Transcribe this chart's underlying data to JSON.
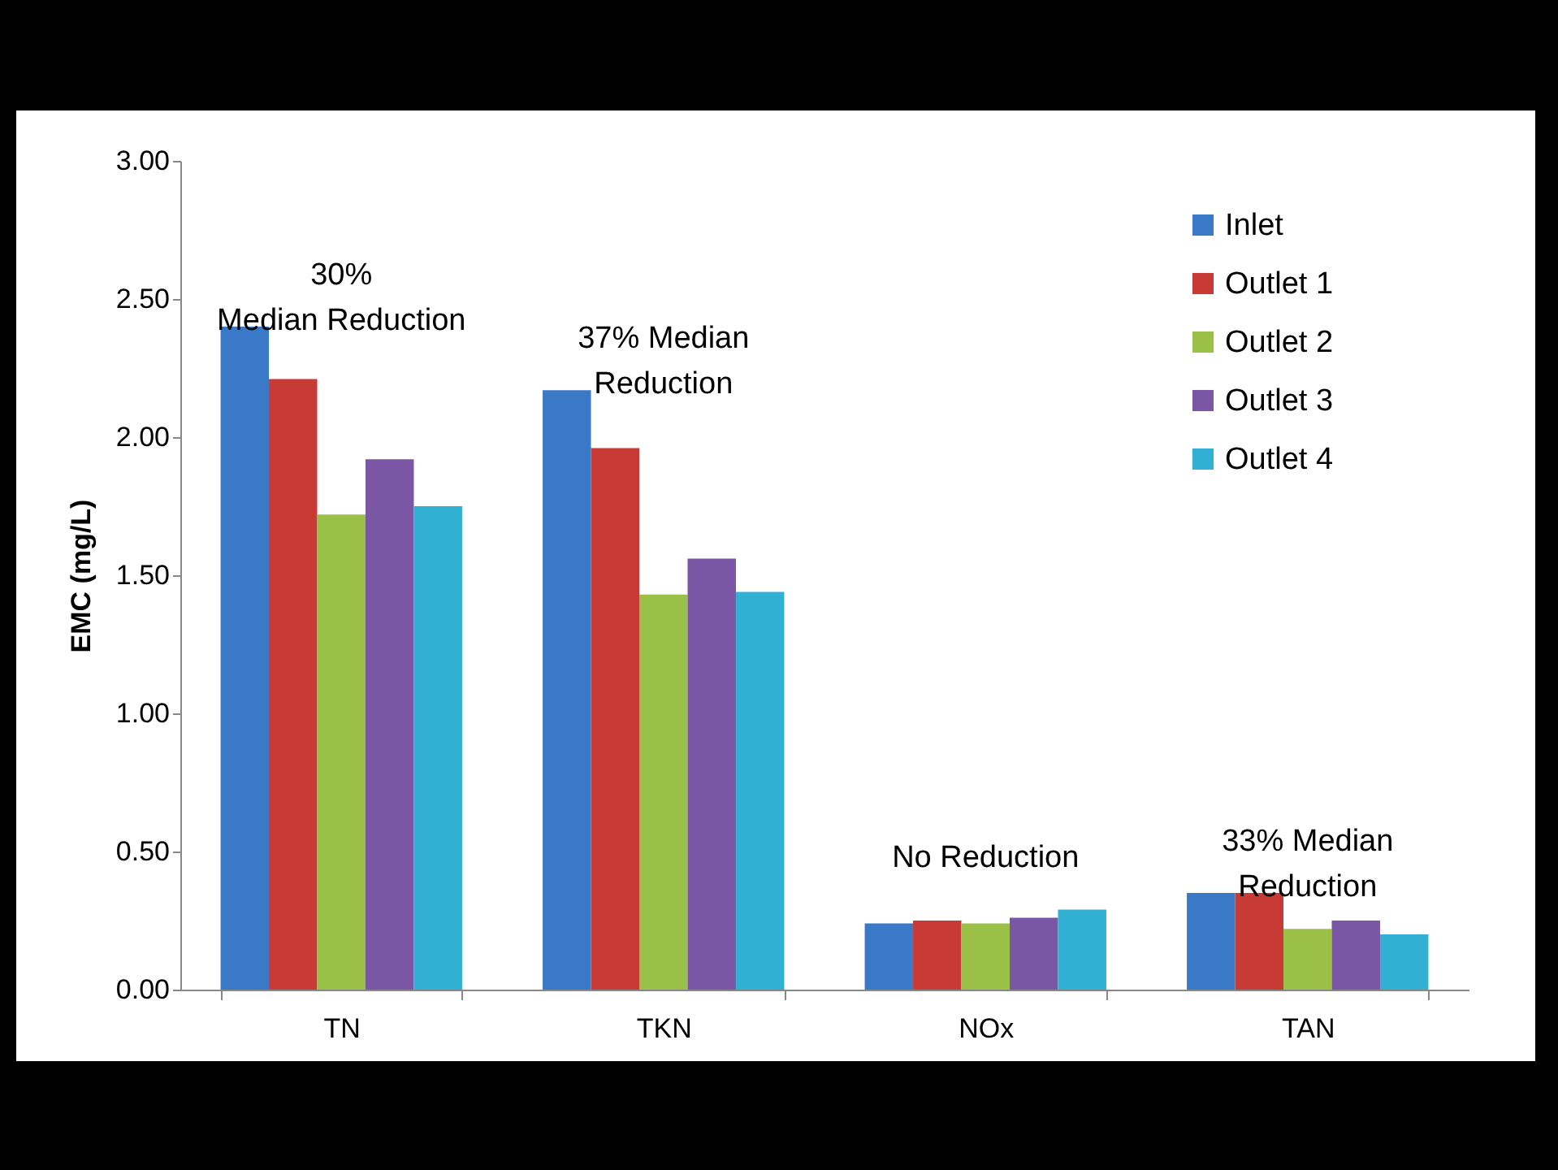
{
  "chart_data": {
    "type": "bar",
    "ylabel": "EMC (mg/L)",
    "categories": [
      "TN",
      "TKN",
      "NOx",
      "TAN"
    ],
    "series": [
      {
        "name": "Inlet",
        "color": "#3a78c8",
        "values": [
          2.4,
          2.17,
          0.24,
          0.35
        ]
      },
      {
        "name": "Outlet 1",
        "color": "#c83a36",
        "values": [
          2.21,
          1.96,
          0.25,
          0.35
        ]
      },
      {
        "name": "Outlet 2",
        "color": "#9bc048",
        "values": [
          1.72,
          1.43,
          0.24,
          0.22
        ]
      },
      {
        "name": "Outlet 3",
        "color": "#7a56a4",
        "values": [
          1.92,
          1.56,
          0.26,
          0.25
        ]
      },
      {
        "name": "Outlet 4",
        "color": "#32b0d4",
        "values": [
          1.75,
          1.44,
          0.29,
          0.2
        ]
      }
    ],
    "ylim": [
      0,
      3
    ],
    "yticks": [
      {
        "value": 0,
        "label": "0.00"
      },
      {
        "value": 0.5,
        "label": "0.50"
      },
      {
        "value": 1,
        "label": "1.00"
      },
      {
        "value": 1.5,
        "label": "1.50"
      },
      {
        "value": 2,
        "label": "2.00"
      },
      {
        "value": 2.5,
        "label": "2.50"
      },
      {
        "value": 3,
        "label": "3.00"
      }
    ],
    "annotations": [
      "30%\nMedian Reduction",
      "37% Median\nReduction",
      "No Reduction",
      "33% Median\nReduction"
    ],
    "legend": "top right"
  }
}
